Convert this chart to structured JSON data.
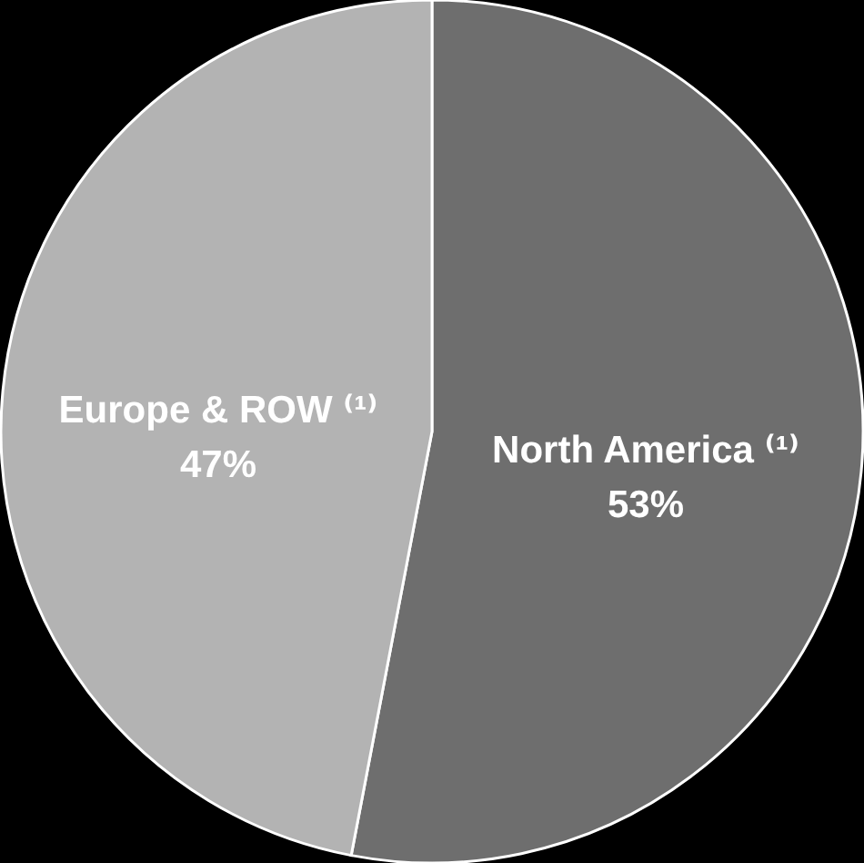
{
  "chart_data": {
    "type": "pie",
    "categories": [
      "North America ⁽¹⁾",
      "Europe & ROW ⁽¹⁾"
    ],
    "values": [
      53,
      47
    ],
    "value_labels": [
      "53%",
      "47%"
    ],
    "colors": [
      "#6e6e6e",
      "#b3b3b3"
    ]
  }
}
